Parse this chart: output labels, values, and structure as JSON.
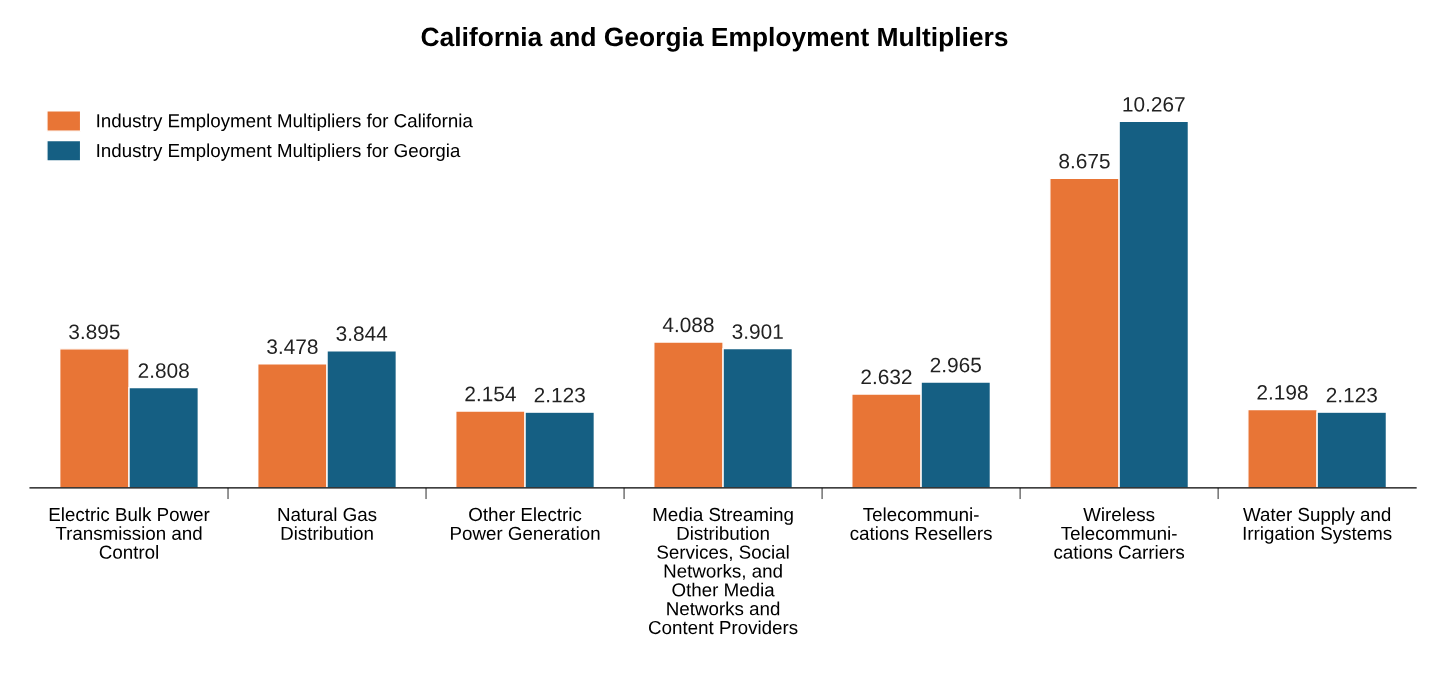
{
  "chart_data": {
    "type": "bar",
    "title": "California and Georgia Employment Multipliers",
    "categories": [
      "Electric Bulk Power\nTransmission and\nControl",
      "Natural Gas\nDistribution",
      "Other Electric\nPower Generation",
      "Media Streaming\nDistribution\nServices, Social\nNetworks, and\nOther Media\nNetworks and\nContent Providers",
      "Telecommuni-\ncations Resellers",
      "Wireless\nTelecommuni-\ncations Carriers",
      "Water Supply and\nIrrigation Systems"
    ],
    "series": [
      {
        "name": "Industry Employment Multipliers for California",
        "color": "#e87536",
        "values": [
          3.895,
          3.478,
          2.154,
          4.088,
          2.632,
          8.675,
          2.198
        ]
      },
      {
        "name": "Industry Employment Multipliers for Georgia",
        "color": "#155f83",
        "values": [
          2.808,
          3.844,
          2.123,
          3.901,
          2.965,
          10.267,
          2.123
        ]
      }
    ],
    "data_labels": true,
    "legend": "top left",
    "grid": false,
    "tick_labels": "x"
  }
}
